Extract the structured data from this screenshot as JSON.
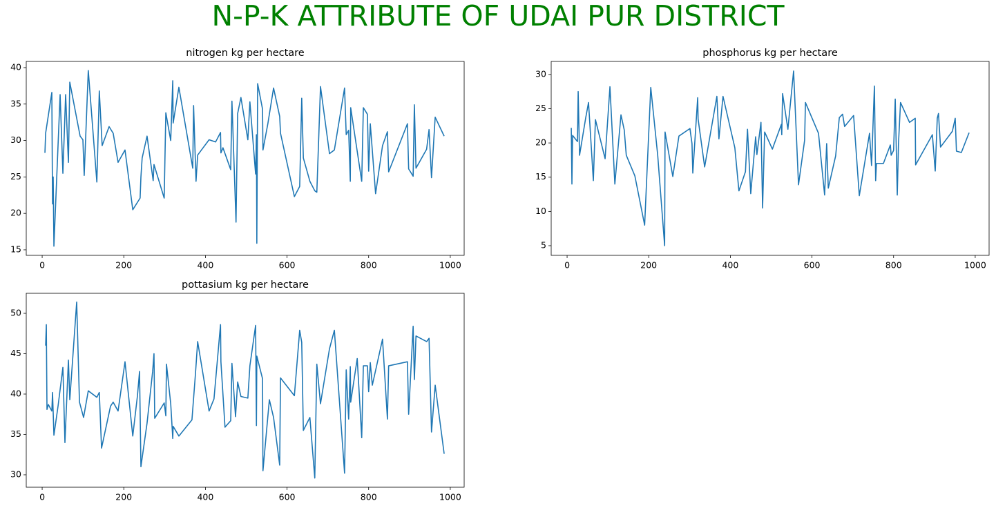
{
  "title": "N-P-K ATTRIBUTE OF UDAI PUR DISTRICT",
  "chart_data": [
    {
      "type": "line",
      "title": "nitrogen kg per hectare",
      "color": "#1f77b4",
      "x": [
        6.8,
        8.5,
        23.7,
        25.4,
        27,
        28.8,
        44,
        50.8,
        57.5,
        64.3,
        67.7,
        93,
        99.8,
        103,
        113,
        134,
        140,
        147,
        164,
        174,
        186,
        203,
        222,
        240,
        242,
        245,
        257,
        272,
        274,
        299,
        303,
        315,
        320,
        321,
        335,
        369,
        371,
        377,
        381,
        409,
        425,
        437,
        438,
        443,
        462,
        465,
        475,
        479,
        487,
        504,
        509,
        523,
        525,
        526,
        528,
        540,
        541,
        553,
        567,
        582,
        584,
        618,
        631,
        636,
        640,
        656,
        668,
        673,
        682,
        704,
        716,
        741,
        745,
        751,
        755,
        756,
        772,
        783,
        787,
        797,
        800,
        804,
        817,
        834,
        846,
        849,
        895,
        898,
        909,
        912,
        916,
        942,
        948,
        954,
        963,
        985
      ],
      "values": [
        28.3,
        31,
        36.6,
        21.3,
        25,
        15.5,
        36.3,
        25.5,
        36.3,
        27,
        38,
        30.6,
        30.1,
        25.2,
        39.6,
        24.3,
        36.8,
        29.3,
        31.9,
        31,
        27,
        28.7,
        20.5,
        22.1,
        25,
        27.6,
        30.6,
        24.5,
        26.7,
        22.1,
        33.8,
        30,
        38.2,
        32.4,
        37.3,
        26.2,
        34.8,
        24.4,
        28,
        30.1,
        29.8,
        31.1,
        28.3,
        29,
        26,
        35.4,
        18.8,
        33.7,
        35.9,
        30.1,
        35.3,
        25.4,
        30.8,
        15.9,
        37.8,
        34.3,
        28.7,
        32.3,
        37.2,
        33.3,
        31,
        22.3,
        23.7,
        35.8,
        27.6,
        24.4,
        23.1,
        22.9,
        37.4,
        28.2,
        28.7,
        37.2,
        30.8,
        31.4,
        24.4,
        34.5,
        28.5,
        24.4,
        34.5,
        33.6,
        25.8,
        32.3,
        22.7,
        29.3,
        31.2,
        25.7,
        32.3,
        26.1,
        25.1,
        34.9,
        26.2,
        28.8,
        31.5,
        24.9,
        33.2,
        30.6
      ],
      "xlim": [
        -39,
        1034
      ],
      "ylim": [
        14.24,
        40.85
      ],
      "xticks": [
        0,
        200,
        400,
        600,
        800,
        1000
      ],
      "yticks": [
        15,
        20,
        25,
        30,
        35,
        40
      ]
    },
    {
      "type": "line",
      "title": "phosphorus kg per hectare",
      "color": "#1f77b4",
      "x": [
        10.2,
        11.8,
        13.5,
        25.4,
        27.1,
        30.5,
        45.7,
        52.5,
        64.3,
        69.4,
        93.1,
        105,
        117,
        132,
        140,
        145,
        166,
        190,
        205,
        222,
        239,
        240,
        259,
        274,
        301,
        306,
        308,
        320,
        321,
        337,
        367,
        372,
        382,
        411,
        421,
        437,
        442,
        450,
        462,
        465,
        475,
        479,
        484,
        503,
        509,
        525,
        526,
        528,
        541,
        555,
        567,
        582,
        584,
        616,
        631,
        636,
        640,
        658,
        667,
        675,
        680,
        702,
        716,
        741,
        746,
        753,
        756,
        758,
        775,
        792,
        794,
        800,
        804,
        809,
        812,
        817,
        839,
        853,
        854,
        895,
        902,
        907,
        910,
        915,
        944,
        951,
        954,
        966,
        985
      ],
      "values": [
        22.2,
        14,
        21.1,
        20.2,
        27.5,
        18.2,
        23.7,
        25.9,
        14.5,
        23.4,
        17.7,
        28.2,
        14,
        24.1,
        21.9,
        18.2,
        15.2,
        8,
        28.1,
        18.2,
        5,
        21.6,
        15.1,
        21,
        22.1,
        19.9,
        15.6,
        26.6,
        23.5,
        16.5,
        26.8,
        20.6,
        26.8,
        19.3,
        13,
        15.8,
        22,
        12.6,
        20.9,
        18.3,
        23,
        10.5,
        21.6,
        19.1,
        20.1,
        22.7,
        21.2,
        27.2,
        22,
        30.5,
        13.9,
        20.4,
        25.9,
        21.4,
        12.4,
        19.9,
        13.4,
        18.1,
        23.7,
        24.2,
        22.4,
        24,
        12.3,
        21.4,
        16.7,
        28.3,
        14.5,
        17,
        17,
        19.7,
        18.2,
        18.9,
        26.4,
        12.4,
        19.9,
        25.9,
        23,
        23.6,
        16.8,
        21.2,
        15.9,
        23.6,
        24.3,
        19.4,
        21.7,
        23.6,
        18.8,
        18.6,
        21.5
      ],
      "xlim": [
        -39,
        1034
      ],
      "ylim": [
        3.59,
        31.9
      ],
      "xticks": [
        0,
        200,
        400,
        600,
        800,
        1000
      ],
      "yticks": [
        5,
        10,
        15,
        20,
        25,
        30
      ]
    },
    {
      "type": "line",
      "title": "pottasium kg per hectare",
      "color": "#1f77b4",
      "x": [
        8.5,
        10.2,
        11.8,
        15.2,
        23.7,
        25.4,
        28.8,
        38.9,
        50.8,
        55.8,
        64.3,
        67.7,
        84.6,
        91.4,
        101.5,
        113,
        134,
        140,
        145.5,
        167.5,
        174,
        186,
        203,
        222,
        233.5,
        238.6,
        242,
        257,
        270.7,
        274,
        275.8,
        299,
        303,
        304.6,
        315,
        320,
        321,
        335,
        367,
        375.6,
        381,
        409,
        421,
        437,
        438,
        448,
        462,
        465,
        473.8,
        479,
        487,
        504,
        509,
        523,
        525,
        526,
        540,
        541,
        556.7,
        567,
        582,
        584,
        618,
        631,
        636,
        640,
        656,
        668,
        673,
        682,
        704,
        716,
        741,
        745,
        751,
        755,
        756,
        772,
        783,
        787,
        797,
        800,
        804,
        809,
        834,
        846,
        849,
        895,
        898,
        909,
        912,
        916,
        942,
        948,
        954,
        963,
        985
      ],
      "values": [
        46,
        48.6,
        38.1,
        38.7,
        37.9,
        40.2,
        34.9,
        38.5,
        43.3,
        34,
        44.2,
        39.3,
        51.4,
        39,
        37.1,
        40.4,
        39.6,
        40.2,
        33.3,
        38.5,
        39,
        37.9,
        44,
        34.8,
        39.8,
        42.8,
        31,
        36.4,
        42.8,
        45,
        37,
        38.9,
        37.3,
        43.7,
        38.8,
        34.5,
        36,
        34.8,
        36.8,
        42.5,
        46.5,
        37.9,
        39.4,
        48.6,
        44,
        35.9,
        36.7,
        43.8,
        37.2,
        41.5,
        39.7,
        39.5,
        43.5,
        48.5,
        36.1,
        44.7,
        41.9,
        30.5,
        39.3,
        37.1,
        31.2,
        42,
        39.8,
        47.9,
        46.4,
        35.5,
        37.1,
        29.6,
        43.7,
        38.8,
        45.6,
        47.9,
        30.2,
        43,
        36.9,
        43.4,
        39,
        44.4,
        34.6,
        43.5,
        43.5,
        40.3,
        43.9,
        41.1,
        46.8,
        36.9,
        43.5,
        44,
        37.5,
        48.4,
        41.8,
        47.2,
        46.5,
        46.9,
        35.3,
        41.1,
        32.6
      ],
      "xlim": [
        -39,
        1034
      ],
      "ylim": [
        28.46,
        52.48
      ],
      "xticks": [
        0,
        200,
        400,
        600,
        800,
        1000
      ],
      "yticks": [
        30,
        35,
        40,
        45,
        50
      ]
    }
  ]
}
